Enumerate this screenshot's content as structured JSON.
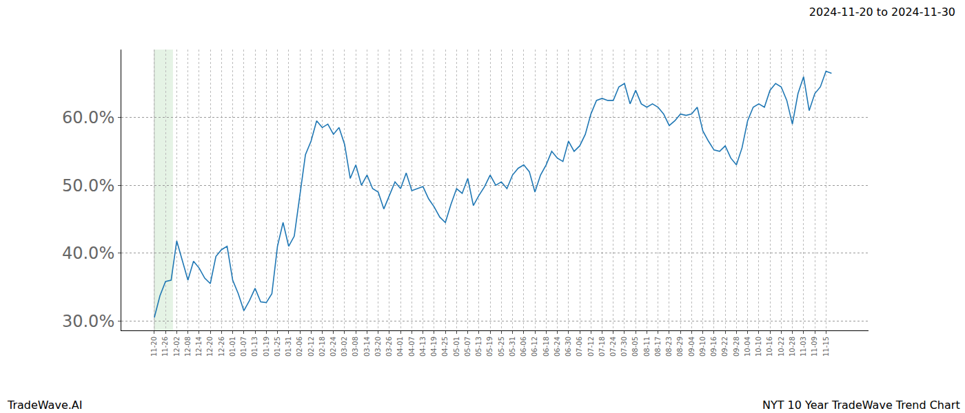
{
  "chart_data": {
    "type": "line",
    "title": "2024-11-20 to 2024-11-30",
    "annotations": [
      "TradeWave.AI",
      "NYT 10 Year TradeWave Trend Chart"
    ],
    "categories": [
      "11-20",
      null,
      "11-26",
      null,
      "12-02",
      null,
      "12-08",
      null,
      "12-14",
      null,
      "12-20",
      null,
      "12-26",
      null,
      "01-01",
      null,
      "01-07",
      null,
      "01-13",
      null,
      "01-19",
      null,
      "01-25",
      null,
      "01-31",
      null,
      "02-06",
      null,
      "02-12",
      null,
      "02-18",
      null,
      "02-24",
      null,
      "03-02",
      null,
      "03-08",
      null,
      "03-14",
      null,
      "03-20",
      null,
      "03-26",
      null,
      "04-01",
      null,
      "04-07",
      null,
      "04-13",
      null,
      "04-19",
      null,
      "04-25",
      null,
      "05-01",
      null,
      "05-07",
      null,
      "05-13",
      null,
      "05-19",
      null,
      "05-25",
      null,
      "05-31",
      null,
      "06-06",
      null,
      "06-12",
      null,
      "06-18",
      null,
      "06-24",
      null,
      "06-30",
      null,
      "07-06",
      null,
      "07-12",
      null,
      "07-18",
      null,
      "07-24",
      null,
      "07-30",
      null,
      "08-05",
      null,
      "08-11",
      null,
      "08-17",
      null,
      "08-23",
      null,
      "08-29",
      null,
      "09-04",
      null,
      "09-10",
      null,
      "09-16",
      null,
      "09-22",
      null,
      "09-28",
      null,
      "10-04",
      null,
      "10-10",
      null,
      "10-16",
      null,
      "10-22",
      null,
      "10-28",
      null,
      "11-03",
      null,
      "11-09",
      null,
      "11-15",
      null
    ],
    "values": [
      30.5,
      33.7,
      35.8,
      36.0,
      41.8,
      39.0,
      36.0,
      38.8,
      37.8,
      36.3,
      35.5,
      39.5,
      40.5,
      41.0,
      36.0,
      34.0,
      31.5,
      33.0,
      34.8,
      32.8,
      32.7,
      34.0,
      41.0,
      44.5,
      41.0,
      42.5,
      48.5,
      54.5,
      56.5,
      59.5,
      58.5,
      59.0,
      57.5,
      58.5,
      56.0,
      51.0,
      53.0,
      50.0,
      51.5,
      49.5,
      49.0,
      46.5,
      48.5,
      50.5,
      49.5,
      51.8,
      49.2,
      49.5,
      49.8,
      48.0,
      46.8,
      45.3,
      44.5,
      47.2,
      49.5,
      48.8,
      51.0,
      47.0,
      48.5,
      49.8,
      51.5,
      50.0,
      50.5,
      49.5,
      51.5,
      52.5,
      53.0,
      52.0,
      49.0,
      51.5,
      53.0,
      55.0,
      54.0,
      53.5,
      56.5,
      55.0,
      55.8,
      57.5,
      60.5,
      62.5,
      62.8,
      62.5,
      62.5,
      64.5,
      65.0,
      62.0,
      64.0,
      62.0,
      61.5,
      62.0,
      61.5,
      60.5,
      58.8,
      59.5,
      60.5,
      60.3,
      60.5,
      61.5,
      58.0,
      56.5,
      55.2,
      55.0,
      55.8,
      54.0,
      53.0,
      55.5,
      59.5,
      61.5,
      62.0,
      61.5,
      64.0,
      65.0,
      64.5,
      62.5,
      59.0,
      63.5,
      66.0,
      61.0,
      63.5,
      64.5,
      66.8,
      66.5
    ],
    "color": "#1f77b4",
    "xlim": [
      -5.9,
      127.6
    ],
    "ylim": [
      28.6,
      70
    ],
    "yticks": [
      {
        "value": 30,
        "label": "30.0%"
      },
      {
        "value": 40,
        "label": "40.0%"
      },
      {
        "value": 50,
        "label": "50.0%"
      },
      {
        "value": 60,
        "label": "60.0%"
      }
    ],
    "highlight": {
      "from": 0,
      "to": 3.33
    },
    "grid": true
  }
}
